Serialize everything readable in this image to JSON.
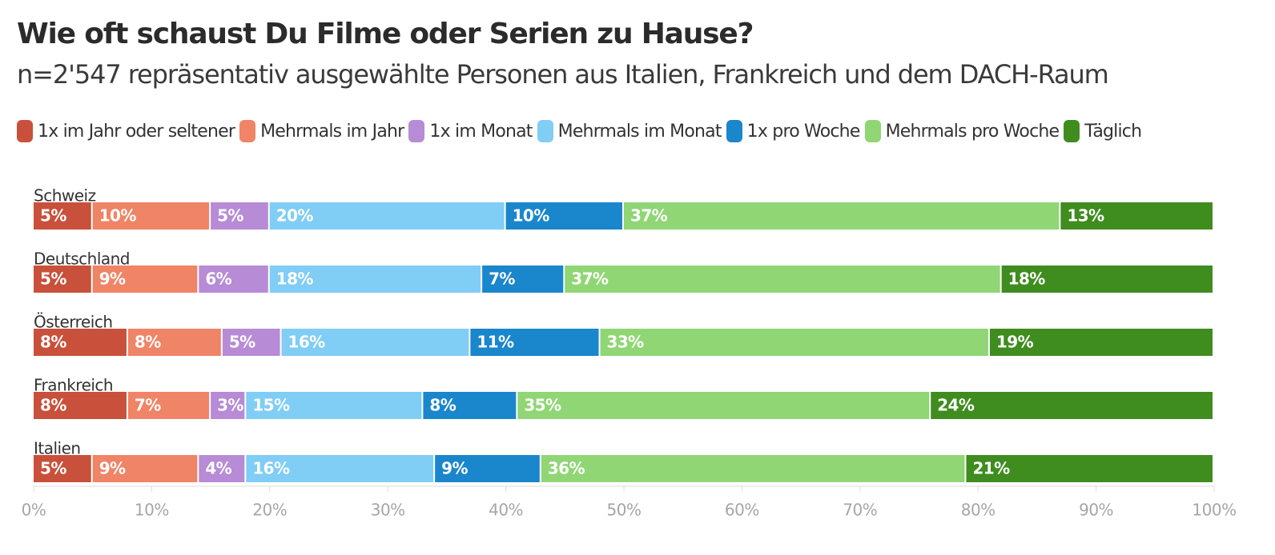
{
  "title": "Wie oft schaust Du Filme oder Serien zu Hause?",
  "subtitle": "n=2'547 repräsentativ ausgewählte Personen aus Italien, Frankreich und dem DACH-Raum",
  "legend": [
    {
      "label": "1x im Jahr oder seltener",
      "color": "#c9503a"
    },
    {
      "label": "Mehrmals im Jahr",
      "color": "#f08466"
    },
    {
      "label": "1x im Monat",
      "color": "#b78bd6"
    },
    {
      "label": "Mehrmals im Monat",
      "color": "#80cdf6"
    },
    {
      "label": "1x pro Woche",
      "color": "#1a86cc"
    },
    {
      "label": "Mehrmals pro Woche",
      "color": "#90d674"
    },
    {
      "label": "Täglich",
      "color": "#3f8c1f"
    }
  ],
  "chart_data": {
    "type": "bar",
    "orientation": "horizontal",
    "stacked": true,
    "title": "Wie oft schaust Du Filme oder Serien zu Hause?",
    "subtitle": "n=2'547 repräsentativ ausgewählte Personen aus Italien, Frankreich und dem DACH-Raum",
    "categories": [
      "Schweiz",
      "Deutschland",
      "Österreich",
      "Frankreich",
      "Italien"
    ],
    "series": [
      {
        "name": "1x im Jahr oder seltener",
        "color": "#c9503a",
        "values": [
          5,
          5,
          8,
          8,
          5
        ],
        "labels": [
          "5%",
          "5%",
          "8%",
          "8%",
          "5%"
        ]
      },
      {
        "name": "Mehrmals im Jahr",
        "color": "#f08466",
        "values": [
          10,
          9,
          8,
          7,
          9
        ],
        "labels": [
          "10%",
          "9%",
          "8%",
          "7%",
          "9%"
        ]
      },
      {
        "name": "1x im Monat",
        "color": "#b78bd6",
        "values": [
          5,
          6,
          5,
          3,
          4
        ],
        "labels": [
          "5%",
          "6%",
          "5%",
          "3%",
          "4%"
        ]
      },
      {
        "name": "Mehrmals im Monat",
        "color": "#80cdf6",
        "values": [
          20,
          18,
          16,
          15,
          16
        ],
        "labels": [
          "20%",
          "18%",
          "16%",
          "15%",
          "16%"
        ]
      },
      {
        "name": "1x pro Woche",
        "color": "#1a86cc",
        "values": [
          10,
          7,
          11,
          8,
          9
        ],
        "labels": [
          "10%",
          "7%",
          "11%",
          "8%",
          "9%"
        ]
      },
      {
        "name": "Mehrmals pro Woche",
        "color": "#90d674",
        "values": [
          37,
          37,
          33,
          35,
          36
        ],
        "labels": [
          "37%",
          "37%",
          "33%",
          "35%",
          "36%"
        ]
      },
      {
        "name": "Täglich",
        "color": "#3f8c1f",
        "values": [
          13,
          18,
          19,
          24,
          21
        ],
        "labels": [
          "13%",
          "18%",
          "19%",
          "24%",
          "21%"
        ]
      }
    ],
    "x_ticks": [
      "0%",
      "10%",
      "20%",
      "30%",
      "40%",
      "50%",
      "60%",
      "70%",
      "80%",
      "90%",
      "100%"
    ],
    "xlim": [
      0,
      100
    ],
    "xlabel": "",
    "ylabel": "",
    "grid": false,
    "legend_position": "top",
    "axis_color": "#dddddd",
    "tick_color": "#a6a6a6"
  }
}
